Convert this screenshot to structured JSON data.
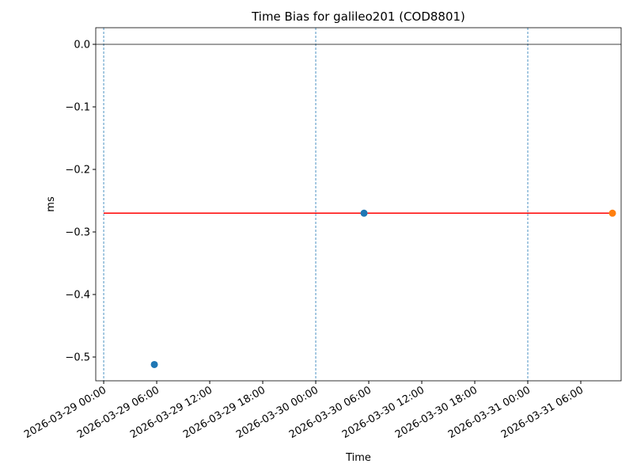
{
  "chart_data": {
    "type": "scatter",
    "title": "Time Bias for galileo201 (COD8801)",
    "x_label": "Time",
    "y_label": "ms",
    "xlim": [
      "2026-03-28 23:06",
      "2026-03-31 10:34"
    ],
    "xticks": [
      "2026-03-29 00:00",
      "2026-03-29 06:00",
      "2026-03-29 12:00",
      "2026-03-29 18:00",
      "2026-03-30 00:00",
      "2026-03-30 06:00",
      "2026-03-30 12:00",
      "2026-03-30 18:00",
      "2026-03-31 00:00",
      "2026-03-31 06:00"
    ],
    "ylim": [
      -0.538,
      0.0266
    ],
    "yticks": [
      {
        "value": 0.0,
        "label": "0.0"
      },
      {
        "value": -0.1,
        "label": "−0.1"
      },
      {
        "value": -0.2,
        "label": "−0.2"
      },
      {
        "value": -0.3,
        "label": "−0.3"
      },
      {
        "value": -0.4,
        "label": "−0.4"
      },
      {
        "value": -0.5,
        "label": "−0.5"
      }
    ],
    "hlines": [
      {
        "value": 0.0,
        "color": "#000000"
      }
    ],
    "vlines": [
      {
        "x": "2026-03-29 00:00",
        "color": "#1f77b4"
      },
      {
        "x": "2026-03-30 00:00",
        "color": "#1f77b4"
      },
      {
        "x": "2026-03-31 00:00",
        "color": "#1f77b4"
      }
    ],
    "series": [
      {
        "kind": "line",
        "color": "#ff0000",
        "x": [
          "2026-03-29 00:00",
          "2026-03-31 09:35"
        ],
        "values": [
          -0.27,
          -0.27
        ]
      },
      {
        "kind": "scatter",
        "color": "#1f77b4",
        "x": [
          "2026-03-29 05:44",
          "2026-03-30 05:28"
        ],
        "values": [
          -0.512,
          -0.27
        ]
      },
      {
        "kind": "scatter",
        "color": "#ff7f0e",
        "x": [
          "2026-03-31 09:35"
        ],
        "values": [
          -0.27
        ]
      }
    ]
  }
}
